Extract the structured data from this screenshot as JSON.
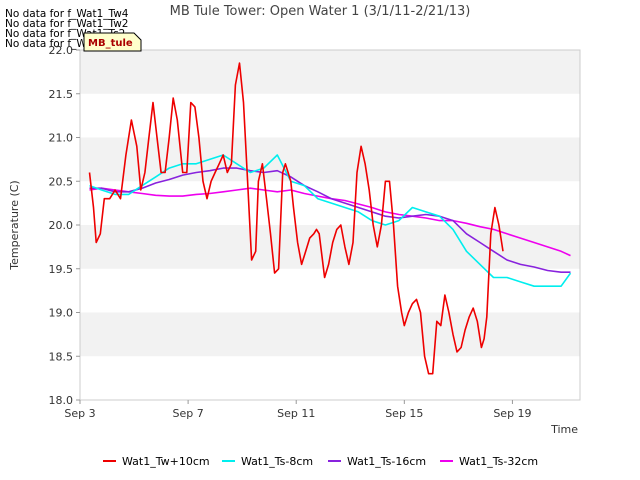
{
  "no_data_messages": [
    "No data for f_Wat1_Tw4",
    "No data for f_Wat1_Tw2",
    "No data for f_Wat1_Ts2",
    "No data for f_Wat1_Tair"
  ],
  "site_tag": "MB_tule",
  "colors": {
    "Wat1_Tw+10cm": "#ee0000",
    "Wat1_Ts-8cm": "#00eeee",
    "Wat1_Ts-16cm": "#8822dd",
    "Wat1_Ts-32cm": "#ee00ee"
  },
  "chart_data": {
    "type": "line",
    "title": "MB Tule Tower: Open Water 1 (3/1/11-2/21/13)",
    "xlabel": "Time",
    "ylabel": "Temperature (C)",
    "xlim": [
      3,
      21.5
    ],
    "ylim": [
      18.0,
      22.0
    ],
    "xticks": [
      3,
      7,
      11,
      15,
      19
    ],
    "xtick_labels": [
      "Sep 3",
      "Sep 7",
      "Sep 11",
      "Sep 15",
      "Sep 19"
    ],
    "yticks": [
      18.0,
      18.5,
      19.0,
      19.5,
      20.0,
      20.5,
      21.0,
      21.5,
      22.0
    ],
    "ytick_labels": [
      "18.0",
      "18.5",
      "19.0",
      "19.5",
      "20.0",
      "20.5",
      "21.0",
      "21.5",
      "22.0"
    ],
    "grid": "alternating horizontal bands",
    "legend_position": "bottom",
    "series": [
      {
        "name": "Wat1_Tw+10cm",
        "x": [
          3.35,
          3.5,
          3.6,
          3.75,
          3.9,
          4.1,
          4.3,
          4.5,
          4.7,
          4.9,
          5.1,
          5.25,
          5.4,
          5.55,
          5.7,
          5.85,
          6.0,
          6.15,
          6.3,
          6.45,
          6.6,
          6.8,
          6.95,
          7.1,
          7.25,
          7.4,
          7.55,
          7.7,
          7.85,
          8.0,
          8.15,
          8.3,
          8.45,
          8.6,
          8.75,
          8.9,
          9.05,
          9.2,
          9.35,
          9.5,
          9.6,
          9.75,
          9.9,
          10.05,
          10.2,
          10.35,
          10.5,
          10.6,
          10.7,
          10.8,
          10.9,
          11.05,
          11.2,
          11.35,
          11.5,
          11.65,
          11.75,
          11.85,
          11.95,
          12.05,
          12.2,
          12.35,
          12.5,
          12.65,
          12.8,
          12.95,
          13.1,
          13.25,
          13.4,
          13.55,
          13.7,
          13.85,
          14.0,
          14.15,
          14.3,
          14.45,
          14.6,
          14.75,
          14.9,
          15.0,
          15.15,
          15.3,
          15.45,
          15.6,
          15.75,
          15.9,
          16.05,
          16.2,
          16.35,
          16.5,
          16.65,
          16.8,
          16.95,
          17.1,
          17.25,
          17.4,
          17.55,
          17.7,
          17.85,
          17.95,
          18.05,
          18.2,
          18.35,
          18.5,
          18.65,
          18.8,
          18.95,
          19.1,
          19.25,
          19.4,
          19.55,
          19.7,
          19.85,
          20.0,
          20.15,
          20.3,
          20.45,
          20.6,
          20.75,
          20.85,
          20.95,
          21.05,
          21.15
        ],
        "values": [
          20.6,
          20.2,
          19.8,
          19.9,
          20.3,
          20.3,
          20.4,
          20.3,
          20.8,
          21.2,
          20.9,
          20.4,
          20.6,
          21.0,
          21.4,
          21.0,
          20.6,
          20.6,
          21.0,
          21.45,
          21.2,
          20.6,
          20.6,
          21.4,
          21.35,
          21.0,
          20.5,
          20.3,
          20.5,
          20.6,
          20.7,
          20.8,
          20.6,
          20.7,
          21.6,
          21.85,
          21.4,
          20.5,
          19.6,
          19.7,
          20.5,
          20.7,
          20.3,
          19.9,
          19.45,
          19.5,
          20.6,
          20.7,
          20.6,
          20.5,
          20.2,
          19.8,
          19.55,
          19.7,
          19.85,
          19.9,
          19.95,
          19.9,
          19.65,
          19.4,
          19.55,
          19.8,
          19.95,
          20.0,
          19.75,
          19.55,
          19.8,
          20.6,
          20.9,
          20.7,
          20.4,
          20.0,
          19.75,
          20.0,
          20.5,
          20.5,
          20.0,
          19.3,
          19.0,
          18.85,
          19.0,
          19.1,
          19.15,
          19.0,
          18.5,
          18.3,
          18.3,
          18.9,
          18.85,
          19.2,
          19.0,
          18.75,
          18.55,
          18.6,
          18.8,
          18.95,
          19.05,
          18.9,
          18.6,
          18.7,
          18.95,
          19.9,
          20.2,
          20.0,
          19.7,
          null,
          null,
          null,
          null,
          null,
          null,
          null,
          null,
          null,
          null,
          null,
          null,
          null,
          null,
          null,
          null,
          null,
          null
        ]
      },
      {
        "name": "Wat1_Ts-8cm",
        "x": [
          3.35,
          3.8,
          4.3,
          4.8,
          5.3,
          5.8,
          6.3,
          6.8,
          7.3,
          7.8,
          8.3,
          8.8,
          9.3,
          9.8,
          10.3,
          10.8,
          11.3,
          11.8,
          12.3,
          12.8,
          13.3,
          13.8,
          14.3,
          14.8,
          15.3,
          15.8,
          16.3,
          16.8,
          17.3,
          17.8,
          18.3,
          18.8,
          19.3,
          19.8,
          20.3,
          20.8,
          21.15
        ],
        "values": [
          20.45,
          20.4,
          20.35,
          20.35,
          20.45,
          20.55,
          20.65,
          20.7,
          20.7,
          20.75,
          20.8,
          20.7,
          20.6,
          20.65,
          20.8,
          20.5,
          20.45,
          20.3,
          20.25,
          20.2,
          20.15,
          20.05,
          20.0,
          20.05,
          20.2,
          20.15,
          20.1,
          19.95,
          19.7,
          19.55,
          19.4,
          19.4,
          19.35,
          19.3,
          19.3,
          19.3,
          19.45
        ]
      },
      {
        "name": "Wat1_Ts-16cm",
        "x": [
          3.35,
          3.8,
          4.3,
          4.8,
          5.3,
          5.8,
          6.3,
          6.8,
          7.3,
          7.8,
          8.3,
          8.8,
          9.3,
          9.8,
          10.3,
          10.8,
          11.3,
          11.8,
          12.3,
          12.8,
          13.3,
          13.8,
          14.3,
          14.8,
          15.3,
          15.8,
          16.3,
          16.8,
          17.3,
          17.8,
          18.3,
          18.8,
          19.3,
          19.8,
          20.3,
          20.8,
          21.15
        ],
        "values": [
          20.42,
          20.42,
          20.38,
          20.38,
          20.42,
          20.48,
          20.52,
          20.57,
          20.6,
          20.62,
          20.65,
          20.65,
          20.62,
          20.6,
          20.62,
          20.55,
          20.45,
          20.38,
          20.3,
          20.25,
          20.2,
          20.15,
          20.1,
          20.08,
          20.1,
          20.12,
          20.1,
          20.05,
          19.9,
          19.8,
          19.7,
          19.6,
          19.55,
          19.52,
          19.48,
          19.46,
          19.46
        ]
      },
      {
        "name": "Wat1_Ts-32cm",
        "x": [
          3.35,
          3.8,
          4.3,
          4.8,
          5.3,
          5.8,
          6.3,
          6.8,
          7.3,
          7.8,
          8.3,
          8.8,
          9.3,
          9.8,
          10.3,
          10.8,
          11.3,
          11.8,
          12.3,
          12.8,
          13.3,
          13.8,
          14.3,
          14.8,
          15.3,
          15.8,
          16.3,
          16.8,
          17.3,
          17.8,
          18.3,
          18.8,
          19.3,
          19.8,
          20.3,
          20.8,
          21.15
        ],
        "values": [
          20.4,
          20.42,
          20.4,
          20.38,
          20.36,
          20.34,
          20.33,
          20.33,
          20.35,
          20.36,
          20.38,
          20.4,
          20.42,
          20.4,
          20.38,
          20.4,
          20.36,
          20.33,
          20.3,
          20.28,
          20.24,
          20.2,
          20.15,
          20.12,
          20.1,
          20.08,
          20.05,
          20.05,
          20.02,
          19.98,
          19.95,
          19.9,
          19.85,
          19.8,
          19.75,
          19.7,
          19.65
        ]
      }
    ]
  }
}
